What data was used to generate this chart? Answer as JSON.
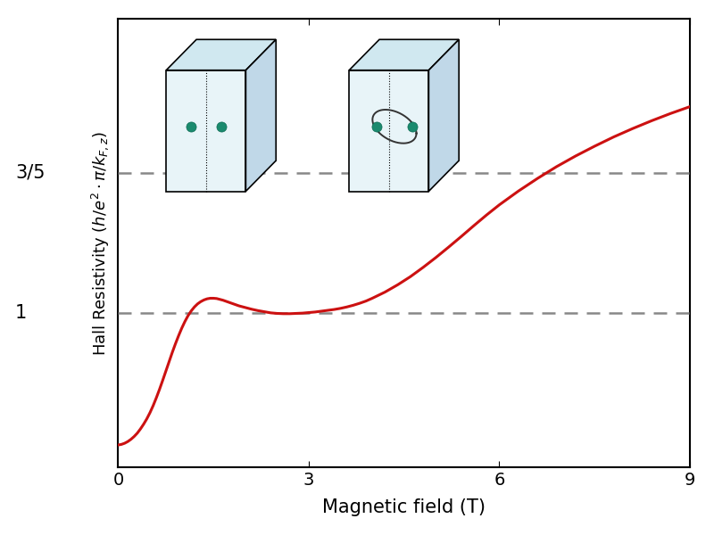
{
  "xlabel": "Magnetic field (T)",
  "ylabel": "Hall Resistivity ($h/e^{2}\\cdot\\pi/k_{F,z}$)",
  "xlim": [
    0,
    9
  ],
  "ylim_min": 0.0,
  "ylim_max": 1.6,
  "xticks": [
    0,
    3,
    6,
    9
  ],
  "hline1_y": 0.55,
  "hline1_label": "1",
  "hline2_y": 1.05,
  "hline2_label": "3/5",
  "line_color": "#cc1111",
  "hline_color": "#888888",
  "curve_x": [
    0.0,
    0.05,
    0.1,
    0.15,
    0.2,
    0.25,
    0.3,
    0.35,
    0.4,
    0.45,
    0.5,
    0.55,
    0.6,
    0.65,
    0.7,
    0.75,
    0.8,
    0.85,
    0.9,
    0.95,
    1.0,
    1.05,
    1.1,
    1.15,
    1.2,
    1.25,
    1.3,
    1.35,
    1.4,
    1.45,
    1.5,
    1.55,
    1.6,
    1.65,
    1.7,
    1.75,
    1.8,
    1.85,
    1.9,
    1.95,
    2.0,
    2.1,
    2.2,
    2.3,
    2.4,
    2.5,
    2.6,
    2.7,
    2.8,
    2.9,
    3.0,
    3.1,
    3.2,
    3.3,
    3.4,
    3.5,
    3.6,
    3.7,
    3.8,
    3.9,
    4.0,
    4.2,
    4.4,
    4.6,
    4.8,
    5.0,
    5.2,
    5.4,
    5.6,
    5.8,
    6.0,
    6.3,
    6.6,
    6.9,
    7.2,
    7.5,
    7.8,
    8.1,
    8.4,
    8.7,
    9.0
  ],
  "curve_y": [
    0.08,
    0.082,
    0.086,
    0.092,
    0.1,
    0.11,
    0.122,
    0.137,
    0.154,
    0.173,
    0.195,
    0.22,
    0.248,
    0.278,
    0.31,
    0.343,
    0.376,
    0.409,
    0.44,
    0.469,
    0.496,
    0.52,
    0.541,
    0.558,
    0.572,
    0.583,
    0.591,
    0.597,
    0.601,
    0.603,
    0.603,
    0.602,
    0.599,
    0.596,
    0.592,
    0.588,
    0.584,
    0.58,
    0.576,
    0.573,
    0.57,
    0.564,
    0.559,
    0.555,
    0.551,
    0.549,
    0.548,
    0.548,
    0.549,
    0.55,
    0.552,
    0.554,
    0.557,
    0.56,
    0.563,
    0.567,
    0.572,
    0.578,
    0.585,
    0.593,
    0.603,
    0.625,
    0.651,
    0.68,
    0.713,
    0.748,
    0.785,
    0.823,
    0.862,
    0.9,
    0.936,
    0.985,
    1.03,
    1.072,
    1.11,
    1.145,
    1.178,
    1.208,
    1.236,
    1.262,
    1.286
  ]
}
